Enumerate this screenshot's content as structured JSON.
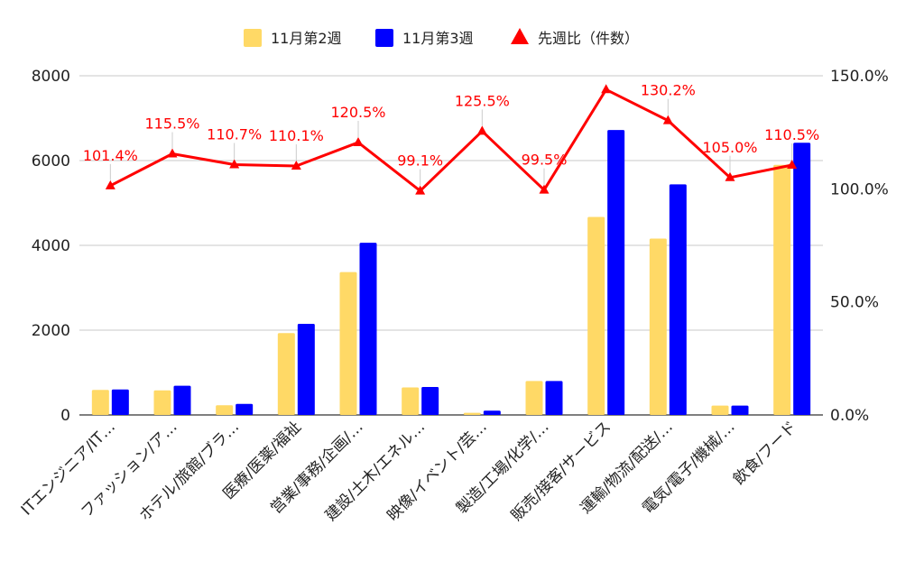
{
  "chart_data": {
    "type": "bar",
    "categories": [
      "ITエンジニア/IT…",
      "ファッション/ア…",
      "ホテル/旅館/ブラ…",
      "医療/医薬/福祉",
      "営業/事務/企画/…",
      "建設/土木/エネル…",
      "映像/イベント/芸…",
      "製造/工場/化学/…",
      "販売/接客/サービス",
      "運輸/物流/配送/…",
      "電気/電子/機械/…",
      "飲食/フード"
    ],
    "series": [
      {
        "name": "11月第2週",
        "color": "#ffd966",
        "values": [
          590,
          580,
          230,
          1930,
          3370,
          650,
          50,
          800,
          4670,
          4160,
          220,
          5900
        ]
      },
      {
        "name": "11月第3週",
        "color": "#0000ff",
        "values": [
          600,
          690,
          260,
          2150,
          4060,
          660,
          100,
          800,
          6720,
          5440,
          220,
          6420
        ]
      }
    ],
    "line_series": {
      "name": "先週比（件数）",
      "color": "#ff0000",
      "axis": "right",
      "values": [
        101.4,
        115.5,
        110.7,
        110.1,
        120.5,
        99.1,
        125.5,
        99.5,
        143.9,
        130.2,
        105.0,
        110.5
      ],
      "labels": [
        "101.4%",
        "115.5%",
        "110.7%",
        "110.1%",
        "120.5%",
        "99.1%",
        "125.5%",
        "99.5%",
        "",
        "130.2%",
        "105.0%",
        "110.5%"
      ]
    },
    "y_left": {
      "min": 0,
      "max": 8000,
      "ticks": [
        "0",
        "2000",
        "4000",
        "6000",
        "8000"
      ]
    },
    "y_right": {
      "min": 0,
      "max": 150,
      "ticks": [
        "0.0%",
        "50.0%",
        "100.0%",
        "150.0%"
      ]
    },
    "grid": true,
    "legend": "top-center"
  }
}
